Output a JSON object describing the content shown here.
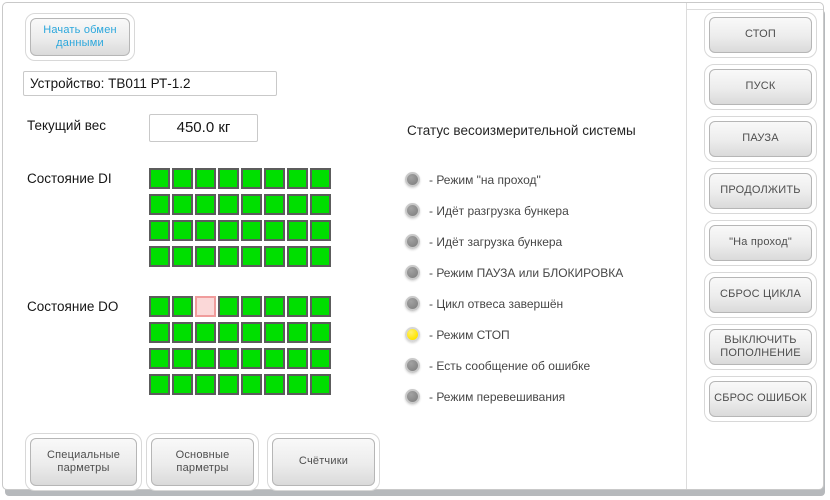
{
  "header": {
    "start_button": "Начать обмен данными",
    "device": "Устройство: ТВ011 РТ-1.2",
    "weight_label": "Текущий вес",
    "weight_value": "450.0 кг"
  },
  "di": {
    "label": "Состояние DI",
    "cells": [
      [
        1,
        1,
        1,
        1,
        1,
        1,
        1,
        1
      ],
      [
        1,
        1,
        1,
        1,
        1,
        1,
        1,
        1
      ],
      [
        1,
        1,
        1,
        1,
        1,
        1,
        1,
        1
      ],
      [
        1,
        1,
        1,
        1,
        1,
        1,
        1,
        1
      ]
    ]
  },
  "do": {
    "label": "Состояние DO",
    "cells": [
      [
        1,
        1,
        0,
        1,
        1,
        1,
        1,
        1
      ],
      [
        1,
        1,
        1,
        1,
        1,
        1,
        1,
        1
      ],
      [
        1,
        1,
        1,
        1,
        1,
        1,
        1,
        1
      ],
      [
        1,
        1,
        1,
        1,
        1,
        1,
        1,
        1
      ]
    ]
  },
  "status": {
    "title": "Статус весоизмерительной системы",
    "items": [
      {
        "label": "- Режим \"на проход\"",
        "state": "off"
      },
      {
        "label": "- Идёт разгрузка бункера",
        "state": "off"
      },
      {
        "label": "- Идёт загрузка бункера",
        "state": "off"
      },
      {
        "label": "- Режим ПАУЗА или БЛОКИРОВКА",
        "state": "off"
      },
      {
        "label": "- Цикл отвеса завершён",
        "state": "off"
      },
      {
        "label": "- Режим СТОП",
        "state": "on"
      },
      {
        "label": "- Есть сообщение об ошибке",
        "state": "off"
      },
      {
        "label": "- Режим перевешивания",
        "state": "off"
      }
    ]
  },
  "right_buttons": [
    "СТОП",
    "ПУСК",
    "ПАУЗА",
    "ПРОДОЛЖИТЬ",
    "\"На проход\"",
    "СБРОС ЦИКЛА",
    "ВЫКЛЮЧИТЬ ПОПОЛНЕНИЕ",
    "СБРОС ОШИБОК"
  ],
  "bottom_buttons": [
    "Специальные парметры",
    "Основные парметры",
    "Счётчики"
  ],
  "colors": {
    "cell_on": "#00df00",
    "cell_off": "#fbd8d8",
    "cell_on_border": "#5c5c5c",
    "cell_off_border": "#f09c9c",
    "led_off": "#8a8a8a",
    "led_on": "#ffe400",
    "accent_blue": "#2ba7dc"
  }
}
